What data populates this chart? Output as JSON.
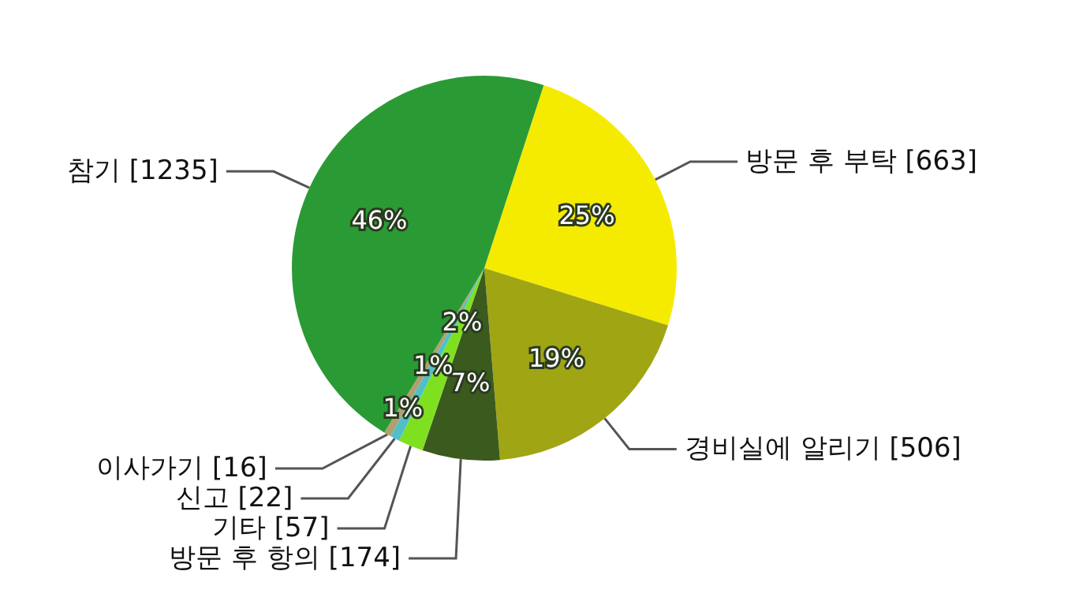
{
  "chart_data": {
    "type": "pie",
    "categories": [
      "방문 후 부탁 [663]",
      "경비실에 알리기 [506]",
      "방문 후 항의 [174]",
      "기타 [57]",
      "신고 [22]",
      "이사가기 [16]",
      "참기 [1235]"
    ],
    "values": [
      24.8,
      18.9,
      6.5,
      2.1,
      0.8,
      0.6,
      46.3
    ],
    "colors": [
      "#f5eb00",
      "#a0a514",
      "#3a5a1e",
      "#7fe020",
      "#4fc0c8",
      "#b0a070",
      "#2a9a35"
    ],
    "value_labels": [
      "25%",
      "19%",
      "7%",
      "2%",
      "1%",
      "1%",
      "46%"
    ],
    "legend": false
  }
}
